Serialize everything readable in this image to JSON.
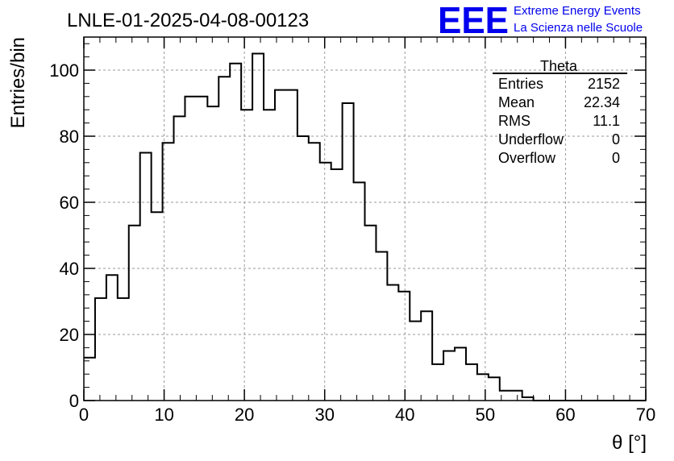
{
  "chart_data": {
    "type": "histogram",
    "title": "LNLE-01-2025-04-08-00123",
    "xlabel": "θ [°]",
    "ylabel": "Entries/bin",
    "xlim": [
      0,
      70
    ],
    "ylim": [
      0,
      110
    ],
    "bin_width": 1.4,
    "x_ticks": [
      0,
      10,
      20,
      30,
      40,
      50,
      60,
      70
    ],
    "y_ticks": [
      0,
      20,
      40,
      60,
      80,
      100
    ],
    "grid": true,
    "values": [
      13,
      31,
      38,
      31,
      53,
      75,
      57,
      78,
      86,
      92,
      92,
      89,
      98,
      102,
      88,
      105,
      88,
      94,
      94,
      80,
      78,
      72,
      70,
      90,
      66,
      53,
      45,
      35,
      33,
      24,
      27,
      11,
      15,
      16,
      11,
      8,
      7,
      3,
      3,
      1,
      0,
      0,
      0,
      0,
      0,
      0,
      0,
      0,
      0,
      0
    ],
    "series_color": "#000000"
  },
  "stats_box": {
    "title": "Theta",
    "rows": [
      {
        "label": "Entries",
        "value": "2152"
      },
      {
        "label": "Mean",
        "value": "22.34"
      },
      {
        "label": "RMS",
        "value": "11.1"
      },
      {
        "label": "Underflow",
        "value": "0"
      },
      {
        "label": "Overflow",
        "value": "0"
      }
    ]
  },
  "logo": {
    "mark": "EEE",
    "line1": "Extreme Energy Events",
    "line2": "La Scienza nelle Scuole",
    "color": "#0000ee"
  }
}
